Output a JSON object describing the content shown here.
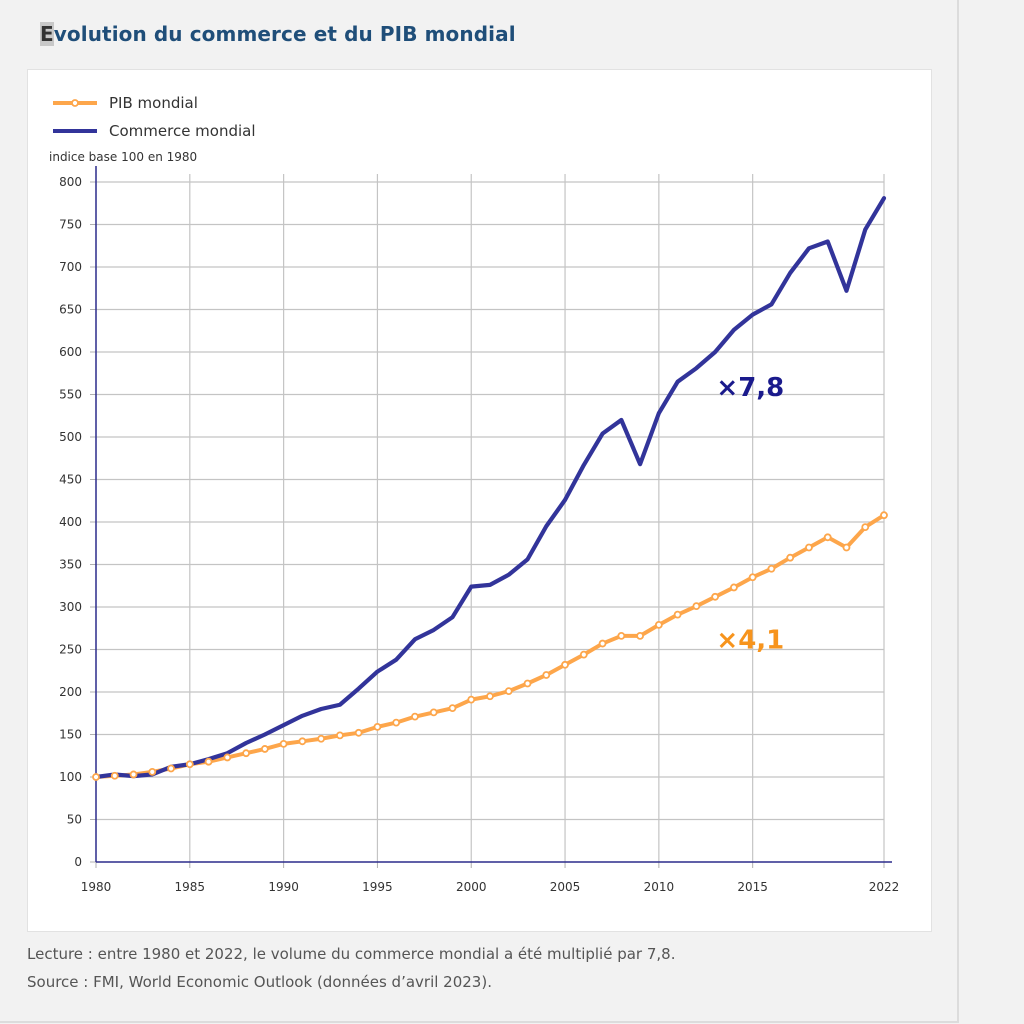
{
  "page": {
    "title_first_letter": "E",
    "title_rest": "volution du commerce et du PIB mondial",
    "caption_lecture": "Lecture : entre 1980 et 2022, le volume du commerce mondial a été multiplié par 7,8.",
    "caption_source": "Source : FMI, World Economic Outlook (données d’avril 2023)."
  },
  "chart_data": {
    "type": "line",
    "title": "Evolution du commerce et du PIB mondial",
    "ylabel": "indice base 100 en 1980",
    "xlabel": "",
    "xlim": [
      1980,
      2022
    ],
    "ylim": [
      0,
      800
    ],
    "x_ticks": [
      1980,
      1985,
      1990,
      1995,
      2000,
      2005,
      2010,
      2015,
      2022
    ],
    "y_ticks": [
      0,
      50,
      100,
      150,
      200,
      250,
      300,
      350,
      400,
      450,
      500,
      550,
      600,
      650,
      700,
      750,
      800
    ],
    "grid": true,
    "legend_position": "top-left",
    "x": [
      1980,
      1981,
      1982,
      1983,
      1984,
      1985,
      1986,
      1987,
      1988,
      1989,
      1990,
      1991,
      1992,
      1993,
      1994,
      1995,
      1996,
      1997,
      1998,
      1999,
      2000,
      2001,
      2002,
      2003,
      2004,
      2005,
      2006,
      2007,
      2008,
      2009,
      2010,
      2011,
      2012,
      2013,
      2014,
      2015,
      2016,
      2017,
      2018,
      2019,
      2020,
      2021,
      2022
    ],
    "series": [
      {
        "name": "PIB mondial",
        "color": "#fda64b",
        "markers": true,
        "values": [
          100,
          101.5,
          103,
          106,
          110,
          115,
          118,
          123,
          128,
          133,
          139,
          142,
          145,
          149,
          152,
          159,
          164,
          171,
          176,
          181,
          191,
          195,
          201,
          210,
          220,
          232,
          244,
          257,
          266,
          266,
          279,
          291,
          301,
          312,
          323,
          335,
          345,
          358,
          370,
          382,
          370,
          394,
          408
        ]
      },
      {
        "name": "Commerce mondial",
        "color": "#32349a",
        "markers": false,
        "values": [
          100,
          103,
          101,
          103,
          112,
          115,
          121,
          128,
          140,
          150,
          161,
          172,
          180,
          185,
          204,
          224,
          238,
          262,
          273,
          288,
          324,
          326,
          338,
          356,
          395,
          426,
          467,
          504,
          520,
          468,
          528,
          565,
          581,
          600,
          626,
          644,
          656,
          693,
          722,
          730,
          672,
          744,
          781
        ]
      }
    ],
    "annotations": [
      {
        "text": "×7,8",
        "series": "Commerce mondial",
        "color": "#1a1a8c",
        "x": 2016,
        "y": 560
      },
      {
        "text": "×4,1",
        "series": "PIB mondial",
        "color": "#f7941d",
        "x": 2016,
        "y": 263
      }
    ]
  }
}
